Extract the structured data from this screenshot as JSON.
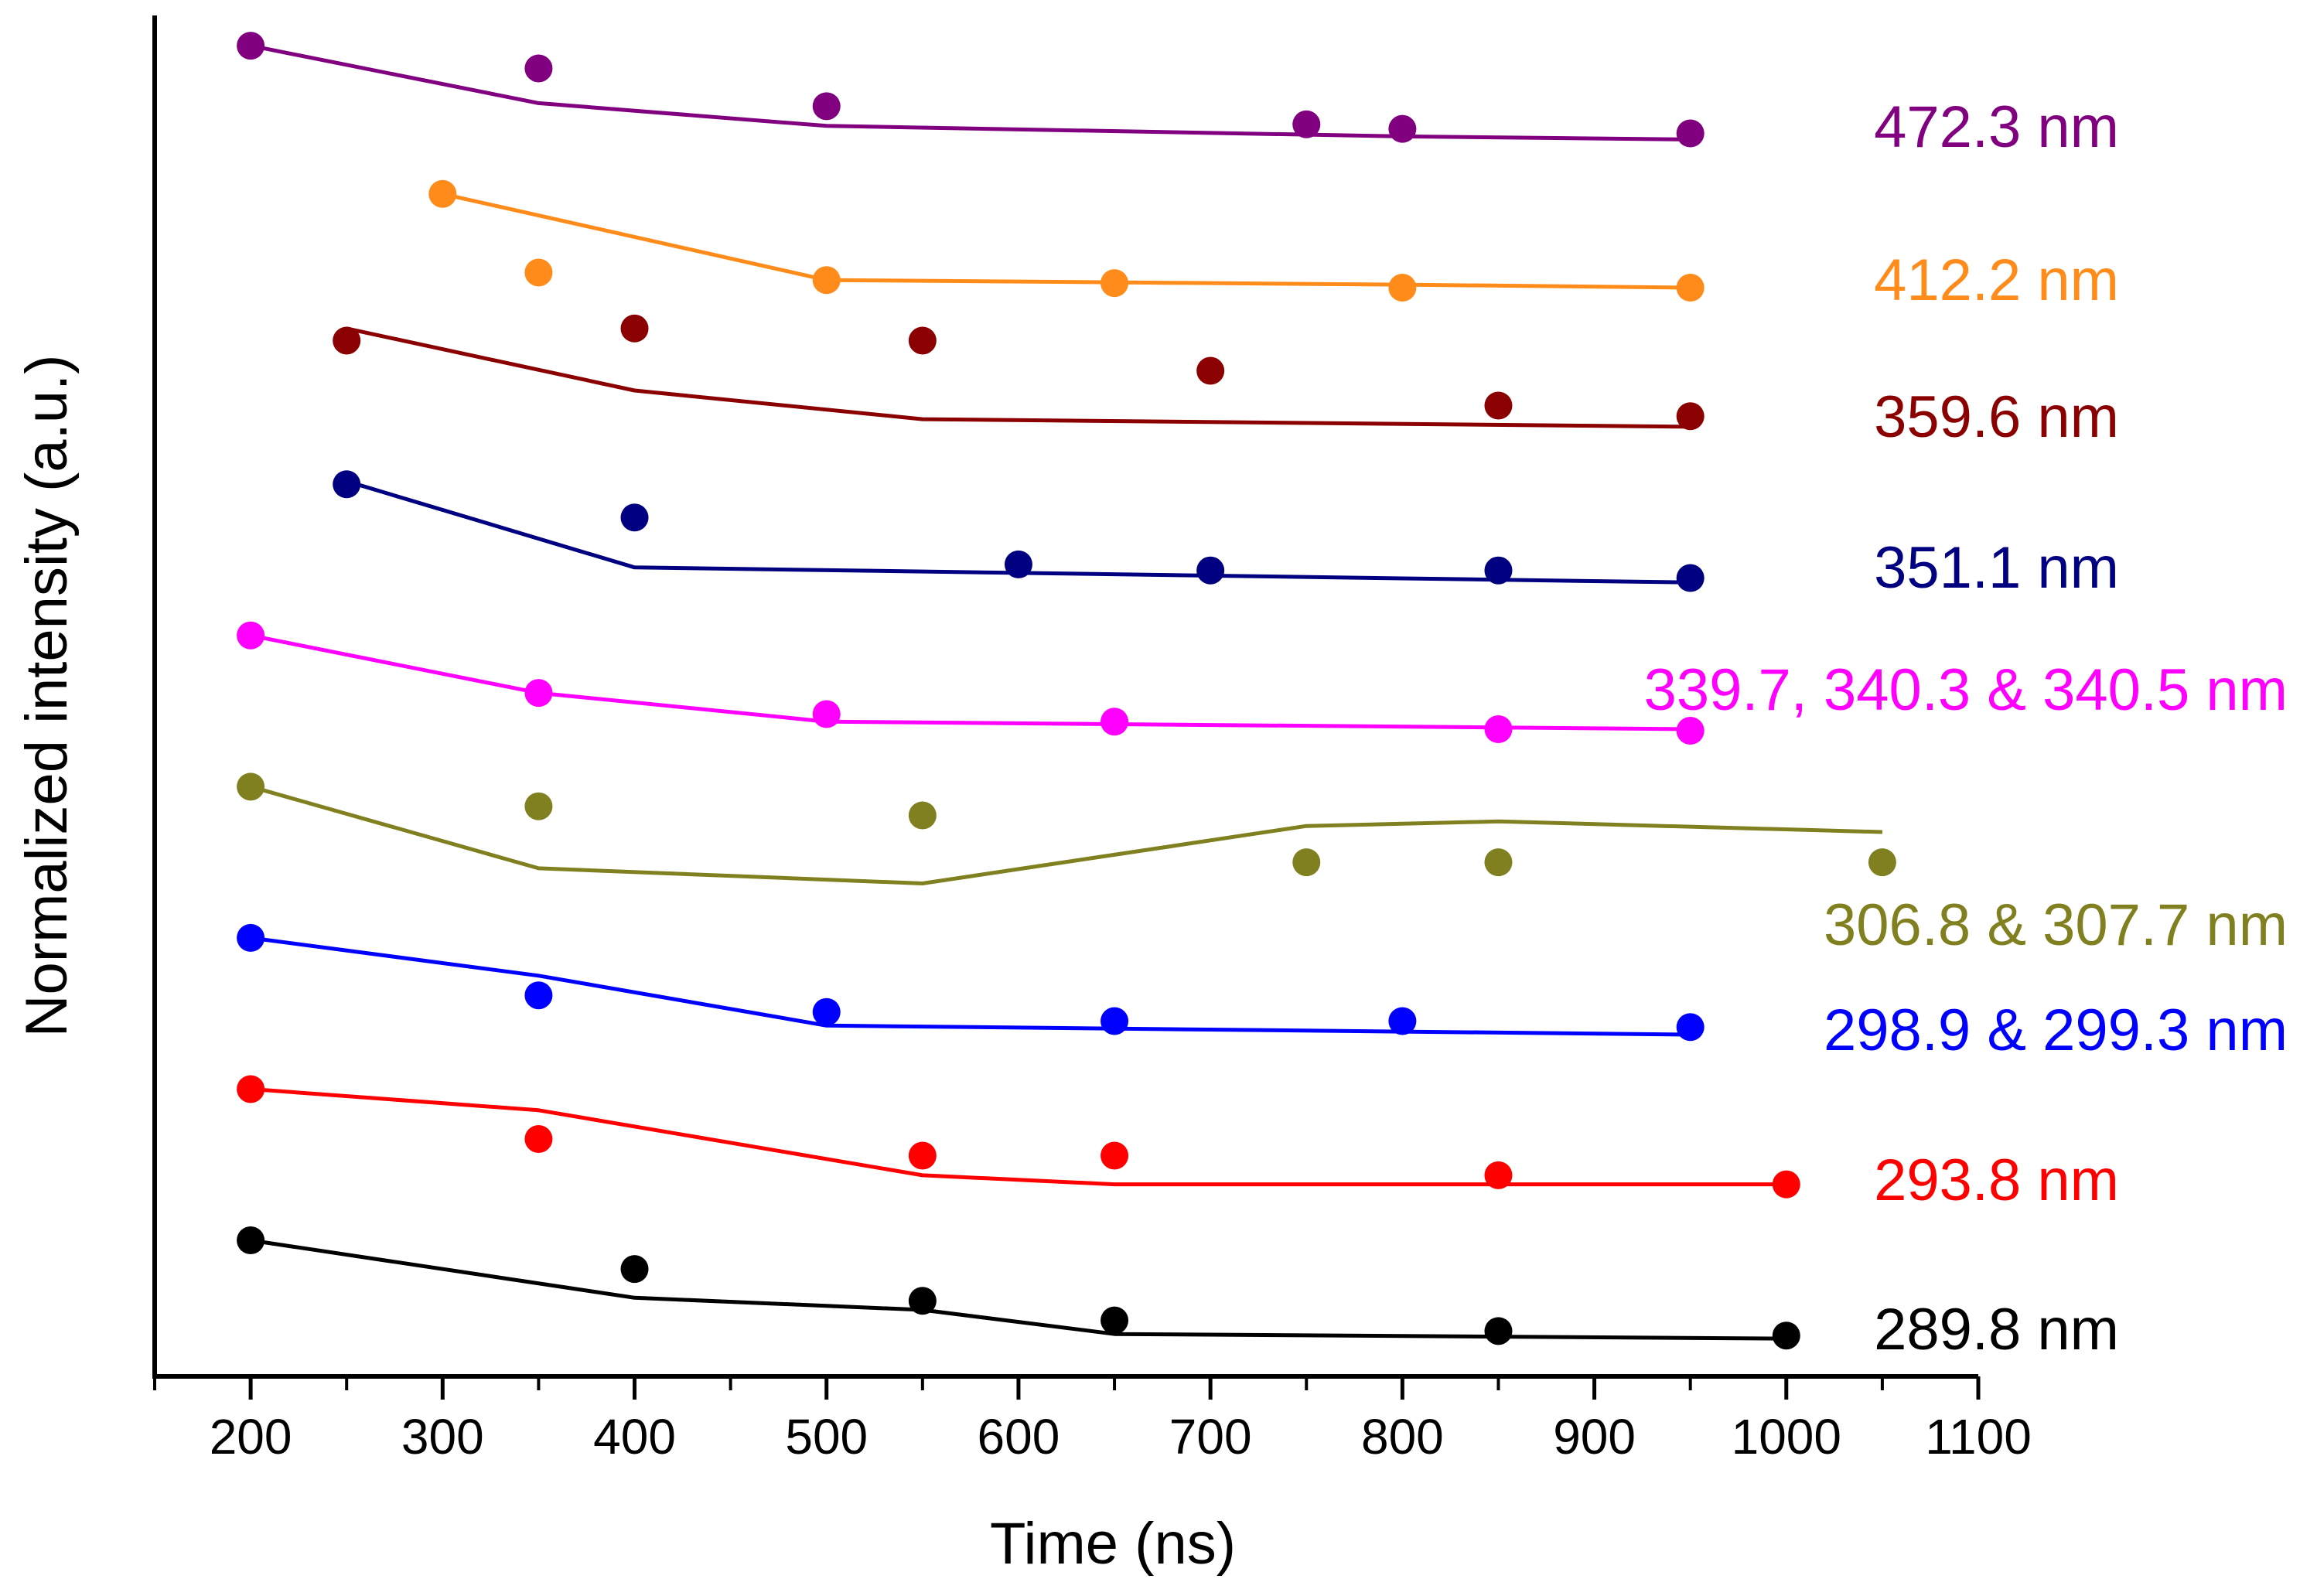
{
  "chart_data": {
    "type": "scatter",
    "title": "",
    "xlabel": "Time (ns)",
    "ylabel": "Normalized intensity (a.u.)",
    "xlim": [
      150,
      1100
    ],
    "xticks": [
      200,
      300,
      400,
      500,
      600,
      700,
      800,
      900,
      1000,
      1100
    ],
    "yticks_shown": false,
    "series": [
      {
        "name": "472.3 nm",
        "color": "#800080",
        "points": [
          [
            200,
            9.8
          ],
          [
            350,
            9.65
          ],
          [
            500,
            9.4
          ],
          [
            750,
            9.28
          ],
          [
            800,
            9.25
          ],
          [
            950,
            9.22
          ]
        ],
        "fit": [
          [
            200,
            9.8
          ],
          [
            350,
            9.42
          ],
          [
            500,
            9.27
          ],
          [
            800,
            9.2
          ],
          [
            950,
            9.18
          ]
        ]
      },
      {
        "name": "412.2 nm",
        "color": "#ff8c1a",
        "points": [
          [
            300,
            8.82
          ],
          [
            350,
            8.3
          ],
          [
            500,
            8.25
          ],
          [
            650,
            8.23
          ],
          [
            800,
            8.2
          ],
          [
            950,
            8.2
          ]
        ],
        "fit": [
          [
            300,
            8.82
          ],
          [
            500,
            8.25
          ],
          [
            800,
            8.22
          ],
          [
            950,
            8.2
          ]
        ]
      },
      {
        "name": "359.6 nm",
        "color": "#8b0000",
        "points": [
          [
            250,
            7.85
          ],
          [
            400,
            7.93
          ],
          [
            550,
            7.85
          ],
          [
            700,
            7.65
          ],
          [
            850,
            7.42
          ],
          [
            950,
            7.35
          ]
        ],
        "fit": [
          [
            250,
            7.93
          ],
          [
            400,
            7.52
          ],
          [
            550,
            7.33
          ],
          [
            950,
            7.28
          ]
        ]
      },
      {
        "name": "351.1 nm",
        "color": "#000080",
        "points": [
          [
            250,
            6.9
          ],
          [
            400,
            6.68
          ],
          [
            600,
            6.37
          ],
          [
            700,
            6.33
          ],
          [
            850,
            6.33
          ],
          [
            950,
            6.28
          ]
        ],
        "fit": [
          [
            250,
            6.92
          ],
          [
            400,
            6.35
          ],
          [
            950,
            6.25
          ]
        ]
      },
      {
        "name": "339.7, 340.3 & 340.5 nm",
        "color": "#ff00ff",
        "points": [
          [
            200,
            5.9
          ],
          [
            350,
            5.52
          ],
          [
            500,
            5.38
          ],
          [
            650,
            5.33
          ],
          [
            850,
            5.28
          ],
          [
            950,
            5.27
          ]
        ],
        "fit": [
          [
            200,
            5.9
          ],
          [
            350,
            5.52
          ],
          [
            500,
            5.33
          ],
          [
            950,
            5.28
          ]
        ]
      },
      {
        "name": "306.8 & 307.7 nm",
        "color": "#808020",
        "points": [
          [
            200,
            4.9
          ],
          [
            350,
            4.77
          ],
          [
            550,
            4.71
          ],
          [
            750,
            4.4
          ],
          [
            850,
            4.4
          ],
          [
            1050,
            4.4
          ]
        ],
        "fit": [
          [
            200,
            4.9
          ],
          [
            350,
            4.36
          ],
          [
            550,
            4.26
          ],
          [
            750,
            4.64
          ],
          [
            850,
            4.67
          ],
          [
            1050,
            4.6
          ]
        ]
      },
      {
        "name": "298.9 & 299.3 nm",
        "color": "#0000ff",
        "points": [
          [
            200,
            3.9
          ],
          [
            350,
            3.52
          ],
          [
            500,
            3.41
          ],
          [
            650,
            3.35
          ],
          [
            800,
            3.35
          ],
          [
            950,
            3.31
          ]
        ],
        "fit": [
          [
            200,
            3.9
          ],
          [
            350,
            3.65
          ],
          [
            500,
            3.32
          ],
          [
            950,
            3.26
          ]
        ]
      },
      {
        "name": "293.8 nm",
        "color": "#ff0000",
        "points": [
          [
            200,
            2.9
          ],
          [
            350,
            2.57
          ],
          [
            550,
            2.46
          ],
          [
            650,
            2.46
          ],
          [
            850,
            2.33
          ],
          [
            1000,
            2.27
          ]
        ],
        "fit": [
          [
            200,
            2.9
          ],
          [
            350,
            2.76
          ],
          [
            550,
            2.33
          ],
          [
            650,
            2.27
          ],
          [
            1000,
            2.27
          ]
        ]
      },
      {
        "name": "289.8 nm",
        "color": "#000000",
        "points": [
          [
            200,
            1.9
          ],
          [
            400,
            1.71
          ],
          [
            550,
            1.5
          ],
          [
            650,
            1.37
          ],
          [
            850,
            1.3
          ],
          [
            1000,
            1.27
          ]
        ],
        "fit": [
          [
            200,
            1.9
          ],
          [
            400,
            1.52
          ],
          [
            550,
            1.44
          ],
          [
            650,
            1.28
          ],
          [
            1000,
            1.25
          ]
        ]
      }
    ]
  }
}
